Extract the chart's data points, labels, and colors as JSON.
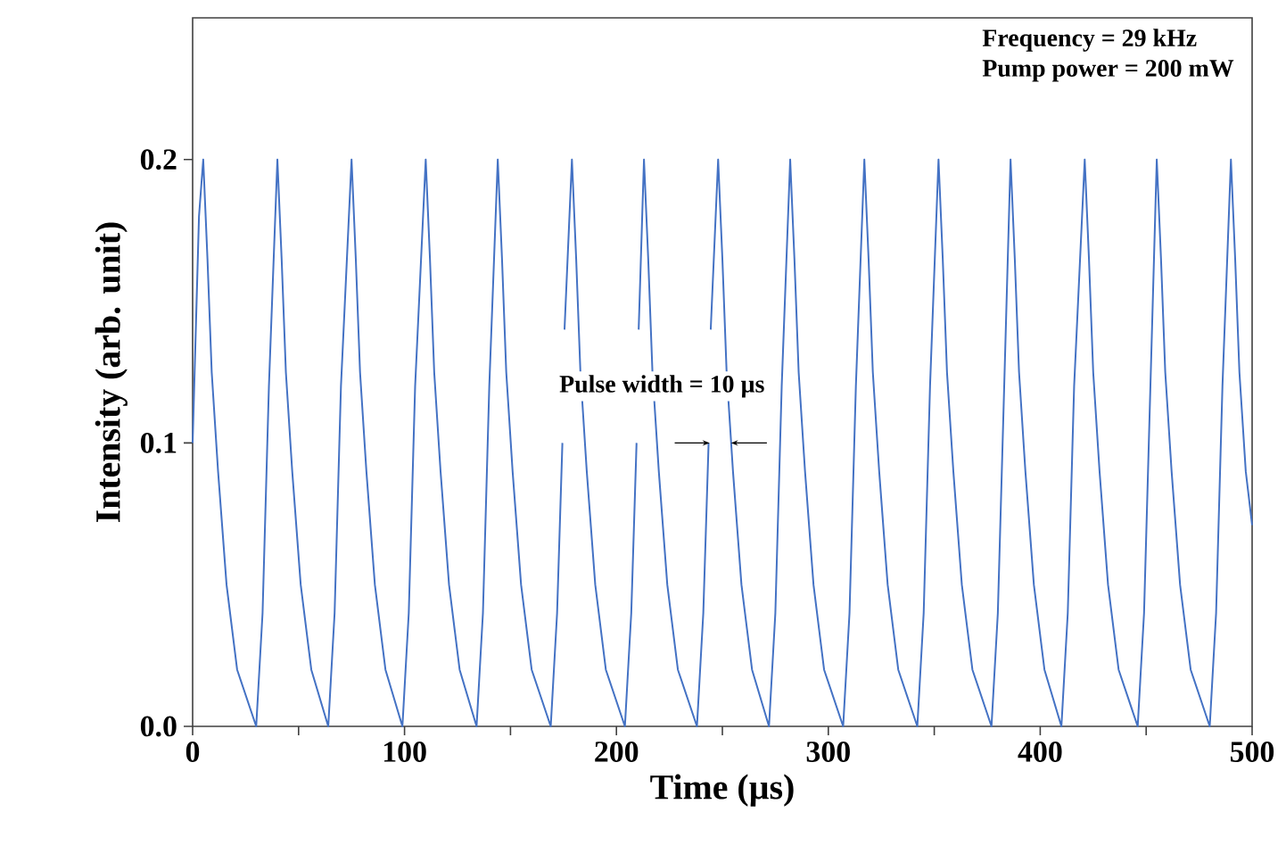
{
  "chart_data": {
    "type": "line",
    "xlabel": "Time (µs)",
    "ylabel": "Intensity (arb. unit)",
    "color": "#4472c4",
    "xlim": [
      0,
      500
    ],
    "ylim": [
      0,
      0.25
    ],
    "xticks": [
      0,
      {
        "value": 50,
        "label": null
      },
      100,
      {
        "value": 150,
        "label": null
      },
      200,
      {
        "value": 250,
        "label": null
      },
      300,
      {
        "value": 350,
        "label": null
      },
      400,
      {
        "value": 450,
        "label": null
      },
      500
    ],
    "yticks": [
      {
        "value": 0,
        "label": "0.0"
      },
      0.1,
      0.2
    ],
    "annotations": [
      "Frequency = 29 kHz",
      "Pump power = 200 mW",
      "Pulse width = 10 µs"
    ],
    "x": [
      0,
      3,
      5,
      7,
      9,
      12,
      16,
      21,
      30,
      33,
      36,
      40,
      42,
      44,
      47,
      51,
      56,
      64,
      67,
      70,
      75,
      77,
      79,
      82,
      86,
      91,
      99,
      102,
      105,
      110,
      112,
      114,
      117,
      121,
      126,
      134,
      137,
      140,
      144,
      146,
      148,
      151,
      155,
      160,
      169,
      172,
      174.5,
      175,
      175.5,
      179,
      181,
      183,
      186,
      190,
      195,
      204,
      207,
      209.5,
      210,
      210.5,
      213,
      215,
      217,
      220,
      224,
      229,
      238,
      241,
      243.5,
      244,
      244.5,
      248,
      250,
      252,
      255,
      259,
      264,
      272,
      275,
      278,
      282,
      284,
      286,
      289,
      293,
      298,
      307,
      310,
      313,
      317,
      319,
      321,
      324,
      328,
      333,
      342,
      345,
      348,
      352,
      354,
      356,
      359,
      363,
      368,
      377,
      380,
      383,
      386,
      388,
      390,
      393,
      397,
      402,
      410,
      413,
      416,
      421,
      423,
      425,
      428,
      432,
      437,
      446,
      449,
      452,
      455,
      457,
      459,
      462,
      466,
      471,
      480,
      483,
      486,
      490,
      492,
      494,
      497,
      500
    ],
    "values": [
      0.1,
      0.18,
      0.2,
      0.165,
      0.125,
      0.09,
      0.05,
      0.02,
      0,
      0.04,
      0.12,
      0.2,
      0.165,
      0.125,
      0.09,
      0.05,
      0.02,
      0,
      0.04,
      0.12,
      0.2,
      0.165,
      0.125,
      0.09,
      0.05,
      0.02,
      0,
      0.04,
      0.12,
      0.2,
      0.165,
      0.125,
      0.09,
      0.05,
      0.02,
      0,
      0.04,
      0.12,
      0.2,
      0.165,
      0.125,
      0.09,
      0.05,
      0.02,
      0,
      0.04,
      0.1,
      null,
      0.14,
      0.2,
      0.165,
      0.125,
      0.09,
      0.05,
      0.02,
      0,
      0.04,
      0.1,
      null,
      0.14,
      0.2,
      0.165,
      0.125,
      0.09,
      0.05,
      0.02,
      0,
      0.04,
      0.1,
      null,
      0.14,
      0.2,
      0.165,
      0.125,
      0.09,
      0.05,
      0.02,
      0,
      0.04,
      0.12,
      0.2,
      0.165,
      0.125,
      0.09,
      0.05,
      0.02,
      0,
      0.04,
      0.12,
      0.2,
      0.165,
      0.125,
      0.09,
      0.05,
      0.02,
      0,
      0.04,
      0.12,
      0.2,
      0.165,
      0.125,
      0.09,
      0.05,
      0.02,
      0,
      0.04,
      0.12,
      0.2,
      0.165,
      0.125,
      0.09,
      0.05,
      0.02,
      0,
      0.04,
      0.12,
      0.2,
      0.165,
      0.125,
      0.09,
      0.05,
      0.02,
      0,
      0.04,
      0.12,
      0.2,
      0.165,
      0.125,
      0.09,
      0.05,
      0.02,
      0,
      0.04,
      0.12,
      0.2,
      0.165,
      0.125,
      0.09,
      0.071
    ]
  }
}
